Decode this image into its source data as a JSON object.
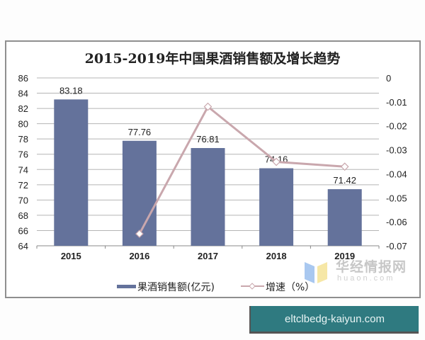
{
  "chart_data": {
    "type": "bar+line",
    "title": "2015-2019年中国果酒销售额及增长趋势",
    "categories": [
      "2015",
      "2016",
      "2017",
      "2018",
      "2019"
    ],
    "series": [
      {
        "name": "果酒销售额(亿元)",
        "type": "bar",
        "axis": "left",
        "color": "#64729b",
        "values": [
          83.18,
          77.76,
          76.81,
          74.16,
          71.42
        ],
        "labels": [
          "83.18",
          "77.76",
          "76.81",
          "74.16",
          "71.42"
        ]
      },
      {
        "name": "增速（%）",
        "type": "line",
        "axis": "right",
        "color": "#c9a7ad",
        "marker": "diamond",
        "values": [
          null,
          -0.065,
          -0.012,
          -0.035,
          -0.037
        ]
      }
    ],
    "left_axis": {
      "ylim": [
        64,
        86
      ],
      "ticks": [
        "86",
        "84",
        "82",
        "80",
        "78",
        "76",
        "74",
        "72",
        "70",
        "68",
        "66",
        "64"
      ]
    },
    "right_axis": {
      "ylim": [
        -0.07,
        0
      ],
      "ticks": [
        "0",
        "-0.01",
        "-0.02",
        "-0.03",
        "-0.04",
        "-0.05",
        "-0.06",
        "-0.07"
      ]
    },
    "grid": true,
    "legend_position": "bottom"
  },
  "legend": {
    "bar_label": "果酒销售额(亿元)",
    "line_label": "增速（%）"
  },
  "watermark": {
    "cn": "华经情报网",
    "en": "huaon.com"
  },
  "badge": {
    "text": "eltclbedg-kaiyun.com"
  }
}
